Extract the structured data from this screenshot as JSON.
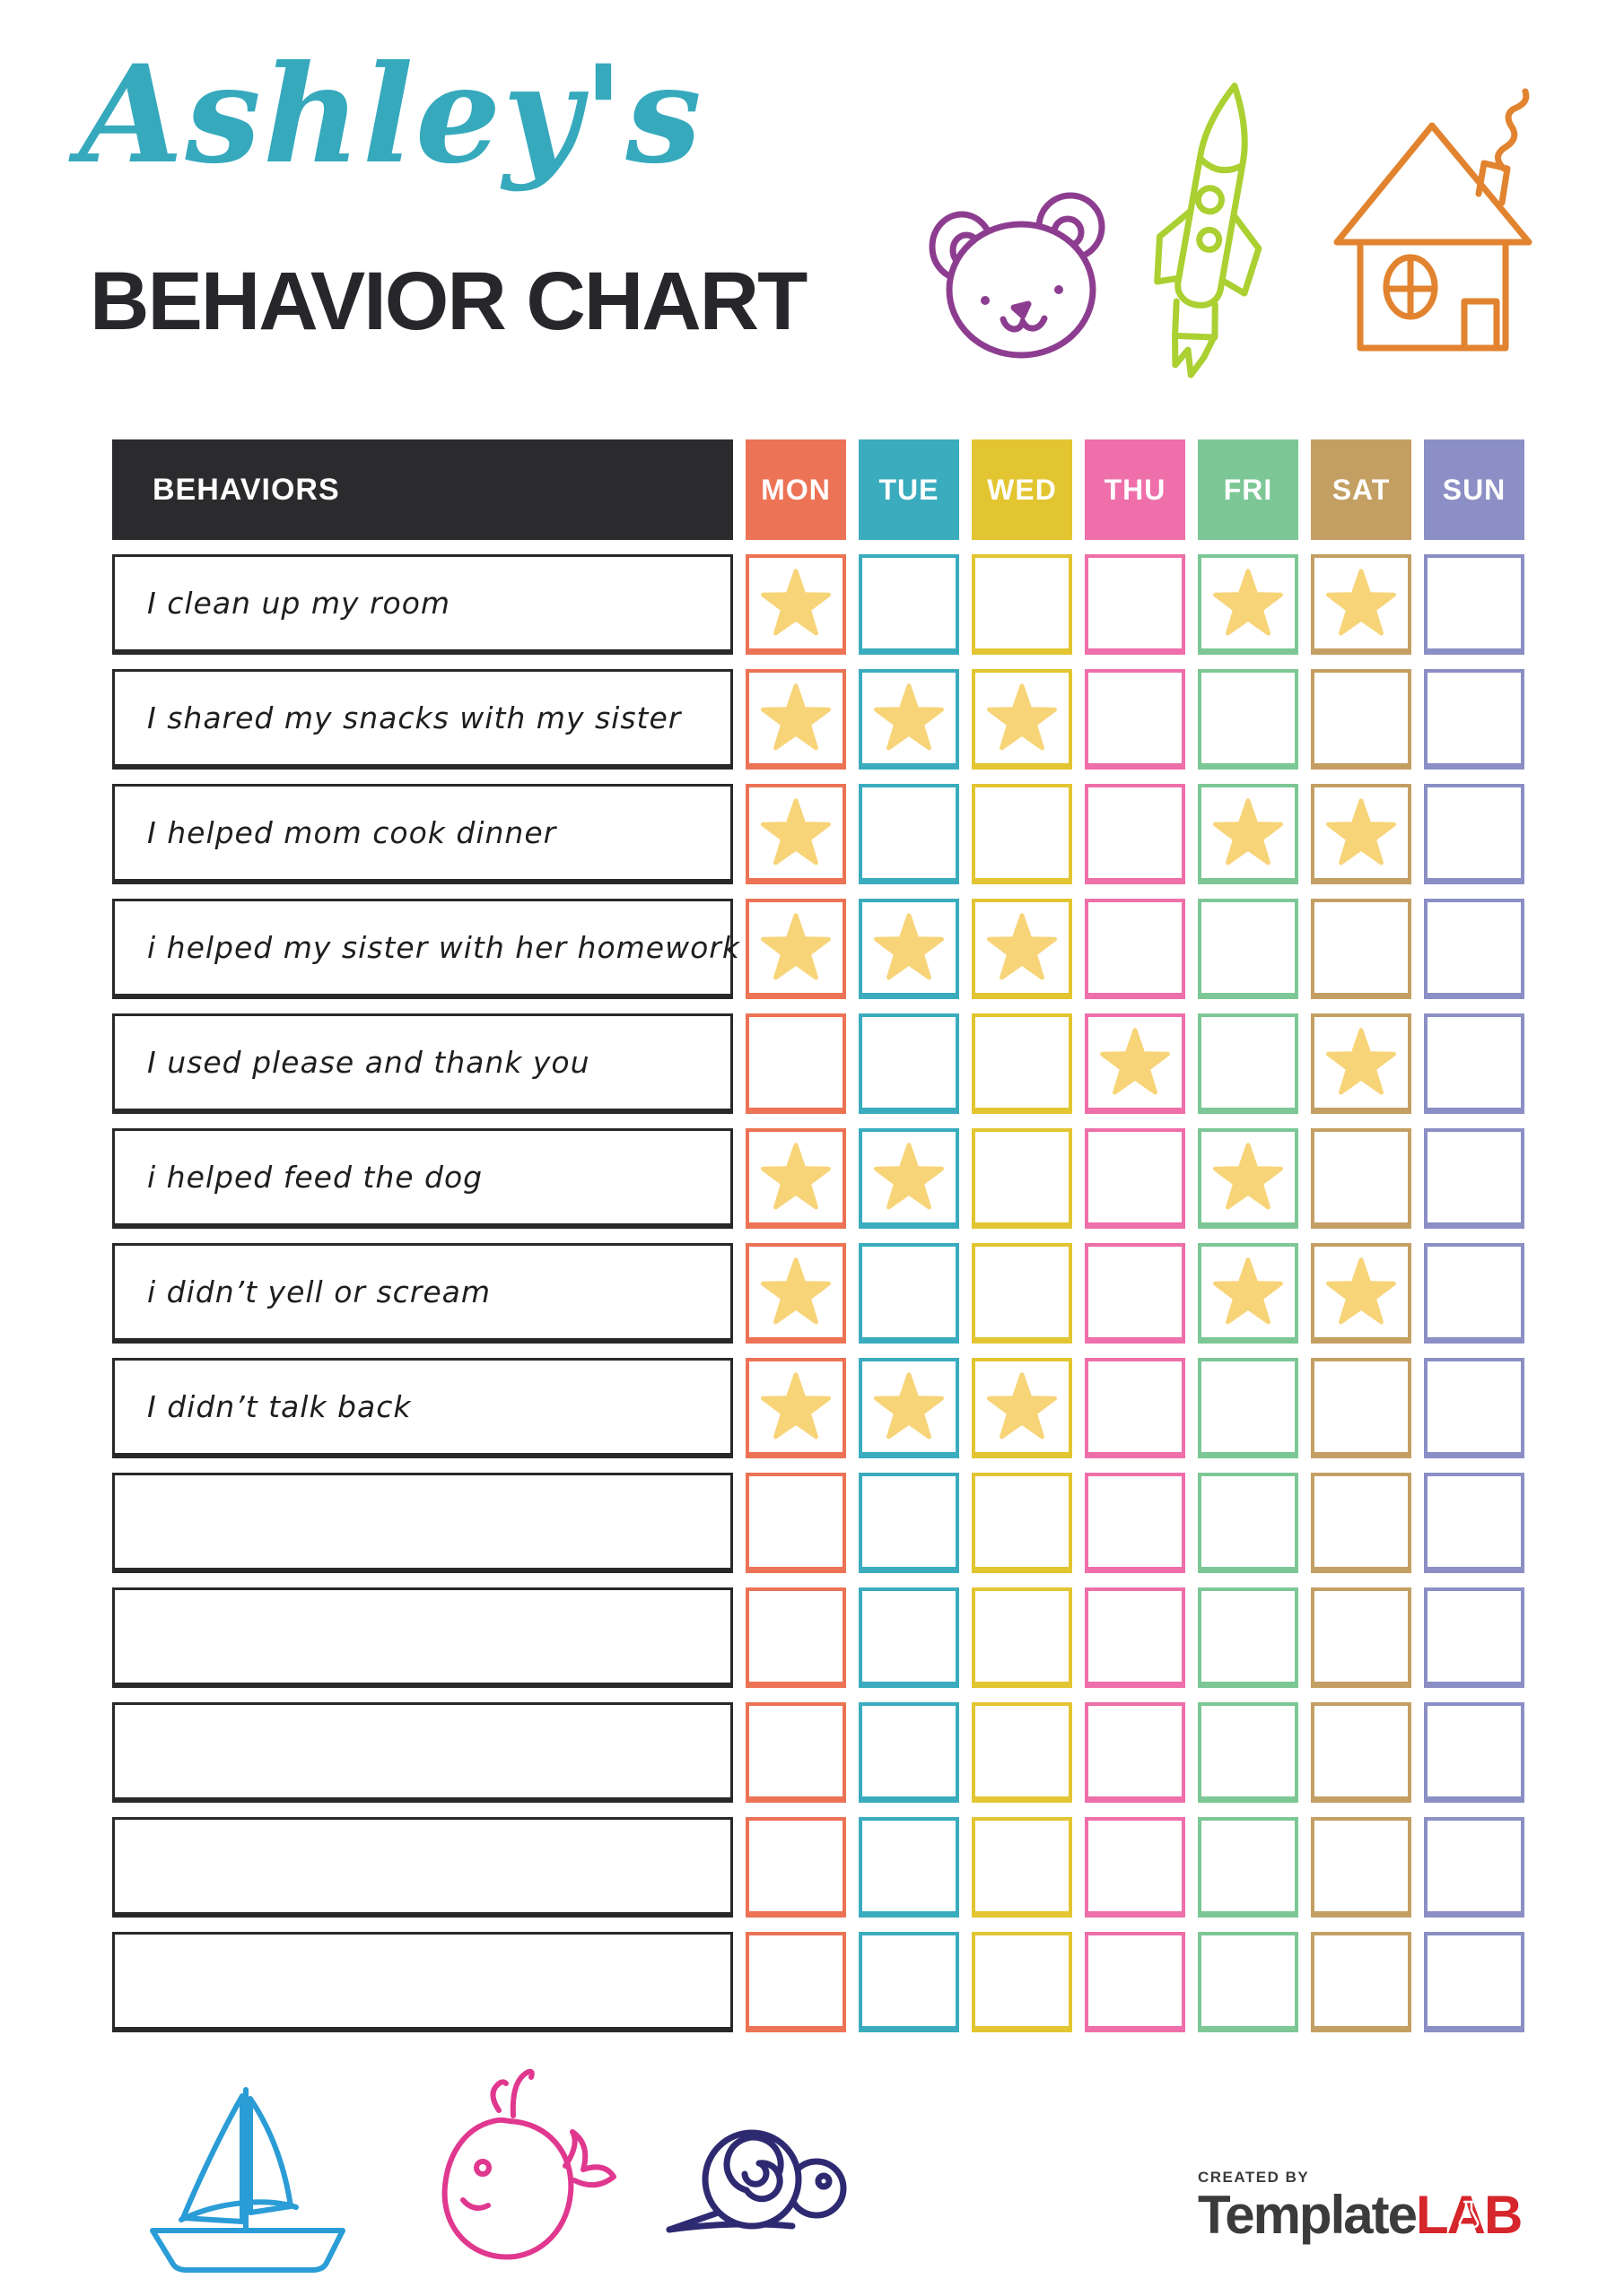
{
  "page": {
    "title_script": "Ashley's",
    "title_main": "BEHAVIOR CHART"
  },
  "table": {
    "behaviors_header": "BEHAVIORS",
    "header_bg": "#2B2B2E",
    "star_color": "#F7D478",
    "behavior_border_color": "#29292B",
    "days": [
      {
        "label": "MON",
        "color": "#EC7355"
      },
      {
        "label": "TUE",
        "color": "#3AACBE"
      },
      {
        "label": "WED",
        "color": "#E2C531"
      },
      {
        "label": "THU",
        "color": "#EE6FA9"
      },
      {
        "label": "FRI",
        "color": "#7CC795"
      },
      {
        "label": "SAT",
        "color": "#C49F63"
      },
      {
        "label": "SUN",
        "color": "#8B8FC5"
      }
    ],
    "rows": [
      {
        "behavior": "I clean up my room",
        "stars": [
          "MON",
          "FRI",
          "SAT"
        ]
      },
      {
        "behavior": "I shared my snacks with my sister",
        "stars": [
          "MON",
          "TUE",
          "WED"
        ]
      },
      {
        "behavior": "I helped mom cook dinner",
        "stars": [
          "MON",
          "FRI",
          "SAT"
        ]
      },
      {
        "behavior": "i helped my sister with her homework",
        "stars": [
          "MON",
          "TUE",
          "WED"
        ]
      },
      {
        "behavior": "I used please and thank you",
        "stars": [
          "THU",
          "SAT"
        ]
      },
      {
        "behavior": "i helped feed the dog",
        "stars": [
          "MON",
          "TUE",
          "FRI"
        ]
      },
      {
        "behavior": "i didn’t yell or scream",
        "stars": [
          "MON",
          "FRI",
          "SAT"
        ]
      },
      {
        "behavior": "I didn’t talk back",
        "stars": [
          "MON",
          "TUE",
          "WED"
        ]
      },
      {
        "behavior": "",
        "stars": []
      },
      {
        "behavior": "",
        "stars": []
      },
      {
        "behavior": "",
        "stars": []
      },
      {
        "behavior": "",
        "stars": []
      },
      {
        "behavior": "",
        "stars": []
      }
    ]
  },
  "doodles": {
    "top": [
      {
        "name": "bear",
        "color": "#8D3D8F"
      },
      {
        "name": "rocket",
        "color": "#ABD032"
      },
      {
        "name": "house",
        "color": "#E2832F"
      }
    ],
    "bottom": [
      {
        "name": "sailboat",
        "color": "#2A9CD6"
      },
      {
        "name": "whale",
        "color": "#E0378F"
      },
      {
        "name": "snail",
        "color": "#2E2A72"
      }
    ]
  },
  "footer": {
    "created_by": "CREATED BY",
    "brand_template": "Template",
    "brand_lab": "LAB",
    "brand_color_dark": "#3B3B3B",
    "brand_color_red": "#D6262B"
  },
  "colors": {
    "title_script": "#36A9BD",
    "title_main": "#27272B"
  }
}
